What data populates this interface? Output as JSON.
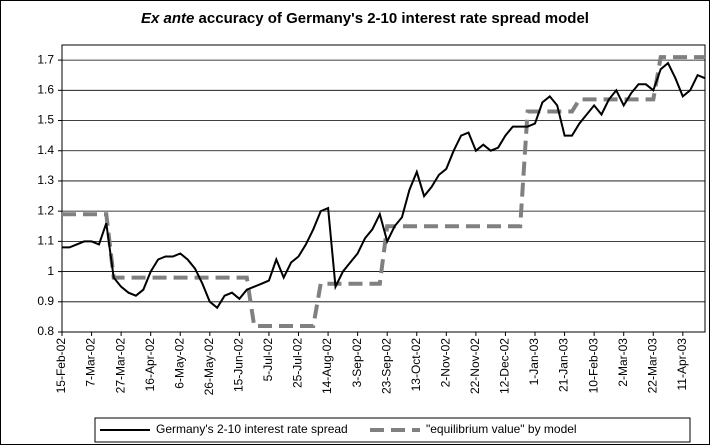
{
  "chart_data": {
    "type": "line",
    "title_italic": "Ex ante",
    "title": "accuracy of Germany's 2-10 interest rate spread model",
    "categories": [
      "15-Feb-02",
      null,
      null,
      null,
      "7-Mar-02",
      null,
      null,
      null,
      "27-Mar-02",
      null,
      null,
      null,
      "16-Apr-02",
      null,
      null,
      null,
      "6-May-02",
      null,
      null,
      null,
      "26-May-02",
      null,
      null,
      null,
      "15-Jun-02",
      null,
      null,
      null,
      "5-Jul-02",
      null,
      null,
      null,
      "25-Jul-02",
      null,
      null,
      null,
      "14-Aug-02",
      null,
      null,
      null,
      "3-Sep-02",
      null,
      null,
      null,
      "23-Sep-02",
      null,
      null,
      null,
      "13-Oct-02",
      null,
      null,
      null,
      "2-Nov-02",
      null,
      null,
      null,
      "22-Nov-02",
      null,
      null,
      null,
      "12-Dec-02",
      null,
      null,
      null,
      "1-Jan-03",
      null,
      null,
      null,
      "21-Jan-03",
      null,
      null,
      null,
      "10-Feb-03",
      null,
      null,
      null,
      "2-Mar-03",
      null,
      null,
      null,
      "22-Mar-03",
      null,
      null,
      null,
      "11-Apr-03",
      null,
      null,
      null
    ],
    "series": [
      {
        "name": "Germany's 2-10 interest rate spread",
        "color": "#000000",
        "dashed": false,
        "values": [
          1.08,
          1.08,
          1.09,
          1.1,
          1.1,
          1.09,
          1.16,
          0.98,
          0.95,
          0.93,
          0.92,
          0.94,
          1.0,
          1.04,
          1.05,
          1.05,
          1.06,
          1.04,
          1.01,
          0.96,
          0.9,
          0.88,
          0.92,
          0.93,
          0.91,
          0.94,
          0.95,
          0.96,
          0.97,
          1.04,
          0.98,
          1.03,
          1.05,
          1.09,
          1.14,
          1.2,
          1.21,
          0.95,
          1.0,
          1.03,
          1.06,
          1.11,
          1.14,
          1.19,
          1.1,
          1.15,
          1.18,
          1.27,
          1.33,
          1.25,
          1.28,
          1.32,
          1.34,
          1.4,
          1.45,
          1.46,
          1.4,
          1.42,
          1.4,
          1.41,
          1.45,
          1.48,
          1.48,
          1.48,
          1.49,
          1.56,
          1.58,
          1.55,
          1.45,
          1.45,
          1.49,
          1.52,
          1.55,
          1.52,
          1.57,
          1.6,
          1.55,
          1.59,
          1.62,
          1.62,
          1.6,
          1.67,
          1.69,
          1.64,
          1.58,
          1.6,
          1.65,
          1.64
        ]
      },
      {
        "name": "\"equilibrium value\" by model",
        "color": "#808080",
        "dashed": true,
        "values": [
          1.19,
          1.19,
          1.19,
          1.19,
          1.19,
          1.19,
          1.19,
          0.98,
          0.98,
          0.98,
          0.98,
          0.98,
          0.98,
          0.98,
          0.98,
          0.98,
          0.98,
          0.98,
          0.98,
          0.98,
          0.98,
          0.98,
          0.98,
          0.98,
          0.98,
          0.98,
          0.82,
          0.82,
          0.82,
          0.82,
          0.82,
          0.82,
          0.82,
          0.82,
          0.82,
          0.96,
          0.96,
          0.96,
          0.96,
          0.96,
          0.96,
          0.96,
          0.96,
          0.96,
          1.15,
          1.15,
          1.15,
          1.15,
          1.15,
          1.15,
          1.15,
          1.15,
          1.15,
          1.15,
          1.15,
          1.15,
          1.15,
          1.15,
          1.15,
          1.15,
          1.15,
          1.15,
          1.15,
          1.53,
          1.53,
          1.53,
          1.53,
          1.53,
          1.53,
          1.53,
          1.57,
          1.57,
          1.57,
          1.57,
          1.57,
          1.57,
          1.57,
          1.57,
          1.57,
          1.57,
          1.57,
          1.71,
          1.71,
          1.71,
          1.71,
          1.71,
          1.71,
          1.71
        ]
      }
    ],
    "ylim": [
      0.8,
      1.75
    ],
    "yticks": [
      0.8,
      0.9,
      1,
      1.1,
      1.2,
      1.3,
      1.4,
      1.5,
      1.6,
      1.7
    ],
    "grid": true,
    "legend": "bottom"
  }
}
